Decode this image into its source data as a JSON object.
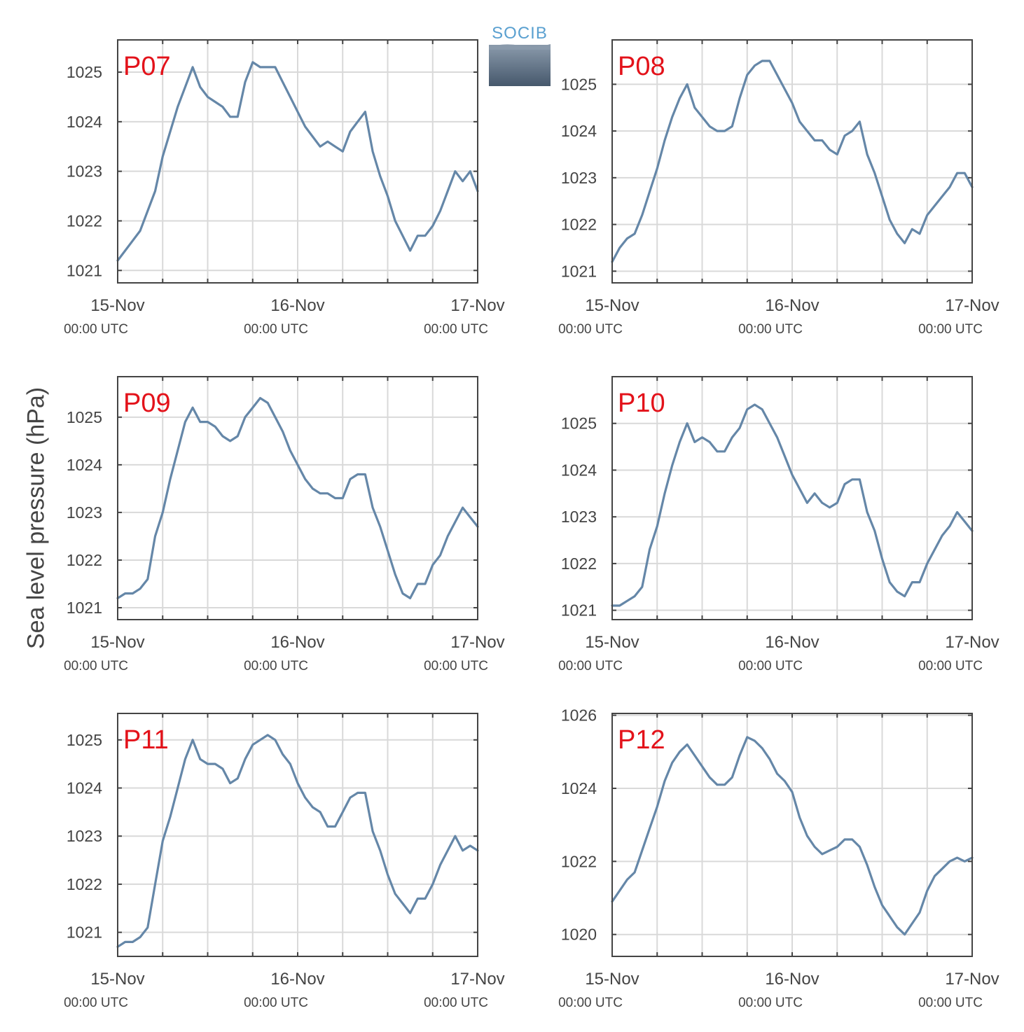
{
  "figure": {
    "ylabel": "Sea level pressure (hPa)",
    "logo_text": "SOCIB"
  },
  "chart_data": [
    {
      "type": "line",
      "panel_label": "P07",
      "x_ticks": [
        {
          "value": 0,
          "date": "15-Nov",
          "time": "00:00 UTC"
        },
        {
          "value": 24,
          "date": "16-Nov",
          "time": "00:00 UTC"
        },
        {
          "value": 48,
          "date": "17-Nov",
          "time": "00:00 UTC"
        }
      ],
      "xlim": [
        0,
        48
      ],
      "ylim": [
        1020.75,
        1025.65
      ],
      "yticks": [
        1021,
        1022,
        1023,
        1024,
        1025
      ],
      "grid": true,
      "x": [
        0,
        1,
        2,
        3,
        4,
        5,
        6,
        7,
        8,
        9,
        10,
        11,
        12,
        13,
        14,
        15,
        16,
        17,
        18,
        19,
        20,
        21,
        22,
        23,
        24,
        25,
        26,
        27,
        28,
        29,
        30,
        31,
        32,
        33,
        34,
        35,
        36,
        37,
        38,
        39,
        40,
        41,
        42,
        43,
        44,
        45,
        46,
        47,
        48
      ],
      "y": [
        1021.2,
        1021.4,
        1021.6,
        1021.8,
        1022.2,
        1022.6,
        1023.3,
        1023.8,
        1024.3,
        1024.7,
        1025.1,
        1024.7,
        1024.5,
        1024.4,
        1024.3,
        1024.1,
        1024.1,
        1024.8,
        1025.2,
        1025.1,
        1025.1,
        1025.1,
        1024.8,
        1024.5,
        1024.2,
        1023.9,
        1023.7,
        1023.5,
        1023.6,
        1023.5,
        1023.4,
        1023.8,
        1024.0,
        1024.2,
        1023.4,
        1022.9,
        1022.5,
        1022.0,
        1021.7,
        1021.4,
        1021.7,
        1021.7,
        1021.9,
        1022.2,
        1022.6,
        1023.0,
        1022.8,
        1023.0,
        1022.6
      ]
    },
    {
      "type": "line",
      "panel_label": "P08",
      "x_ticks": [
        {
          "value": 0,
          "date": "15-Nov",
          "time": "00:00 UTC"
        },
        {
          "value": 24,
          "date": "16-Nov",
          "time": "00:00 UTC"
        },
        {
          "value": 48,
          "date": "17-Nov",
          "time": "00:00 UTC"
        }
      ],
      "xlim": [
        0,
        48
      ],
      "ylim": [
        1020.75,
        1025.95
      ],
      "yticks": [
        1021,
        1022,
        1023,
        1024,
        1025
      ],
      "grid": true,
      "x": [
        0,
        1,
        2,
        3,
        4,
        5,
        6,
        7,
        8,
        9,
        10,
        11,
        12,
        13,
        14,
        15,
        16,
        17,
        18,
        19,
        20,
        21,
        22,
        23,
        24,
        25,
        26,
        27,
        28,
        29,
        30,
        31,
        32,
        33,
        34,
        35,
        36,
        37,
        38,
        39,
        40,
        41,
        42,
        43,
        44,
        45,
        46,
        47,
        48
      ],
      "y": [
        1021.2,
        1021.5,
        1021.7,
        1021.8,
        1022.2,
        1022.7,
        1023.2,
        1023.8,
        1024.3,
        1024.7,
        1025.0,
        1024.5,
        1024.3,
        1024.1,
        1024.0,
        1024.0,
        1024.1,
        1024.7,
        1025.2,
        1025.4,
        1025.5,
        1025.5,
        1025.2,
        1024.9,
        1024.6,
        1024.2,
        1024.0,
        1023.8,
        1023.8,
        1023.6,
        1023.5,
        1023.9,
        1024.0,
        1024.2,
        1023.5,
        1023.1,
        1022.6,
        1022.1,
        1021.8,
        1021.6,
        1021.9,
        1021.8,
        1022.2,
        1022.4,
        1022.6,
        1022.8,
        1023.1,
        1023.1,
        1022.8
      ]
    },
    {
      "type": "line",
      "panel_label": "P09",
      "x_ticks": [
        {
          "value": 0,
          "date": "15-Nov",
          "time": "00:00 UTC"
        },
        {
          "value": 24,
          "date": "16-Nov",
          "time": "00:00 UTC"
        },
        {
          "value": 48,
          "date": "17-Nov",
          "time": "00:00 UTC"
        }
      ],
      "xlim": [
        0,
        48
      ],
      "ylim": [
        1020.75,
        1025.85
      ],
      "yticks": [
        1021,
        1022,
        1023,
        1024,
        1025
      ],
      "grid": true,
      "x": [
        0,
        1,
        2,
        3,
        4,
        5,
        6,
        7,
        8,
        9,
        10,
        11,
        12,
        13,
        14,
        15,
        16,
        17,
        18,
        19,
        20,
        21,
        22,
        23,
        24,
        25,
        26,
        27,
        28,
        29,
        30,
        31,
        32,
        33,
        34,
        35,
        36,
        37,
        38,
        39,
        40,
        41,
        42,
        43,
        44,
        45,
        46,
        47,
        48
      ],
      "y": [
        1021.2,
        1021.3,
        1021.3,
        1021.4,
        1021.6,
        1022.5,
        1023.0,
        1023.7,
        1024.3,
        1024.9,
        1025.2,
        1024.9,
        1024.9,
        1024.8,
        1024.6,
        1024.5,
        1024.6,
        1025.0,
        1025.2,
        1025.4,
        1025.3,
        1025.0,
        1024.7,
        1024.3,
        1024.0,
        1023.7,
        1023.5,
        1023.4,
        1023.4,
        1023.3,
        1023.3,
        1023.7,
        1023.8,
        1023.8,
        1023.1,
        1022.7,
        1022.2,
        1021.7,
        1021.3,
        1021.2,
        1021.5,
        1021.5,
        1021.9,
        1022.1,
        1022.5,
        1022.8,
        1023.1,
        1022.9,
        1022.7
      ]
    },
    {
      "type": "line",
      "panel_label": "P10",
      "x_ticks": [
        {
          "value": 0,
          "date": "15-Nov",
          "time": "00:00 UTC"
        },
        {
          "value": 24,
          "date": "16-Nov",
          "time": "00:00 UTC"
        },
        {
          "value": 48,
          "date": "17-Nov",
          "time": "00:00 UTC"
        }
      ],
      "xlim": [
        0,
        48
      ],
      "ylim": [
        1020.8,
        1026.0
      ],
      "yticks": [
        1021,
        1022,
        1023,
        1024,
        1025
      ],
      "grid": true,
      "x": [
        0,
        1,
        2,
        3,
        4,
        5,
        6,
        7,
        8,
        9,
        10,
        11,
        12,
        13,
        14,
        15,
        16,
        17,
        18,
        19,
        20,
        21,
        22,
        23,
        24,
        25,
        26,
        27,
        28,
        29,
        30,
        31,
        32,
        33,
        34,
        35,
        36,
        37,
        38,
        39,
        40,
        41,
        42,
        43,
        44,
        45,
        46,
        47,
        48
      ],
      "y": [
        1021.1,
        1021.1,
        1021.2,
        1021.3,
        1021.5,
        1022.3,
        1022.8,
        1023.5,
        1024.1,
        1024.6,
        1025.0,
        1024.6,
        1024.7,
        1024.6,
        1024.4,
        1024.4,
        1024.7,
        1024.9,
        1025.3,
        1025.4,
        1025.3,
        1025.0,
        1024.7,
        1024.3,
        1023.9,
        1023.6,
        1023.3,
        1023.5,
        1023.3,
        1023.2,
        1023.3,
        1023.7,
        1023.8,
        1023.8,
        1023.1,
        1022.7,
        1022.1,
        1021.6,
        1021.4,
        1021.3,
        1021.6,
        1021.6,
        1022.0,
        1022.3,
        1022.6,
        1022.8,
        1023.1,
        1022.9,
        1022.7
      ]
    },
    {
      "type": "line",
      "panel_label": "P11",
      "x_ticks": [
        {
          "value": 0,
          "date": "15-Nov",
          "time": "00:00 UTC"
        },
        {
          "value": 24,
          "date": "16-Nov",
          "time": "00:00 UTC"
        },
        {
          "value": 48,
          "date": "17-Nov",
          "time": "00:00 UTC"
        }
      ],
      "xlim": [
        0,
        48
      ],
      "ylim": [
        1020.5,
        1025.55
      ],
      "yticks": [
        1021,
        1022,
        1023,
        1024,
        1025
      ],
      "grid": true,
      "x": [
        0,
        1,
        2,
        3,
        4,
        5,
        6,
        7,
        8,
        9,
        10,
        11,
        12,
        13,
        14,
        15,
        16,
        17,
        18,
        19,
        20,
        21,
        22,
        23,
        24,
        25,
        26,
        27,
        28,
        29,
        30,
        31,
        32,
        33,
        34,
        35,
        36,
        37,
        38,
        39,
        40,
        41,
        42,
        43,
        44,
        45,
        46,
        47,
        48
      ],
      "y": [
        1020.7,
        1020.8,
        1020.8,
        1020.9,
        1021.1,
        1022.0,
        1022.9,
        1023.4,
        1024.0,
        1024.6,
        1025.0,
        1024.6,
        1024.5,
        1024.5,
        1024.4,
        1024.1,
        1024.2,
        1024.6,
        1024.9,
        1025.0,
        1025.1,
        1025.0,
        1024.7,
        1024.5,
        1024.1,
        1023.8,
        1023.6,
        1023.5,
        1023.2,
        1023.2,
        1023.5,
        1023.8,
        1023.9,
        1023.9,
        1023.1,
        1022.7,
        1022.2,
        1021.8,
        1021.6,
        1021.4,
        1021.7,
        1021.7,
        1022.0,
        1022.4,
        1022.7,
        1023.0,
        1022.7,
        1022.8,
        1022.7
      ]
    },
    {
      "type": "line",
      "panel_label": "P12",
      "x_ticks": [
        {
          "value": 0,
          "date": "15-Nov",
          "time": "00:00 UTC"
        },
        {
          "value": 24,
          "date": "16-Nov",
          "time": "00:00 UTC"
        },
        {
          "value": 48,
          "date": "17-Nov",
          "time": "00:00 UTC"
        }
      ],
      "xlim": [
        0,
        48
      ],
      "ylim": [
        1019.4,
        1026.05
      ],
      "yticks": [
        1020,
        1022,
        1024,
        1026
      ],
      "grid": true,
      "x": [
        0,
        1,
        2,
        3,
        4,
        5,
        6,
        7,
        8,
        9,
        10,
        11,
        12,
        13,
        14,
        15,
        16,
        17,
        18,
        19,
        20,
        21,
        22,
        23,
        24,
        25,
        26,
        27,
        28,
        29,
        30,
        31,
        32,
        33,
        34,
        35,
        36,
        37,
        38,
        39,
        40,
        41,
        42,
        43,
        44,
        45,
        46,
        47,
        48
      ],
      "y": [
        1020.9,
        1021.2,
        1021.5,
        1021.7,
        1022.3,
        1022.9,
        1023.5,
        1024.2,
        1024.7,
        1025.0,
        1025.2,
        1024.9,
        1024.6,
        1024.3,
        1024.1,
        1024.1,
        1024.3,
        1024.9,
        1025.4,
        1025.3,
        1025.1,
        1024.8,
        1024.4,
        1024.2,
        1023.9,
        1023.2,
        1022.7,
        1022.4,
        1022.2,
        1022.3,
        1022.4,
        1022.6,
        1022.6,
        1022.4,
        1021.9,
        1021.3,
        1020.8,
        1020.5,
        1020.2,
        1020.0,
        1020.3,
        1020.6,
        1021.2,
        1021.6,
        1021.8,
        1022.0,
        1022.1,
        1022.0,
        1022.1
      ]
    }
  ],
  "colors": {
    "line": "#6587a8",
    "panel_label": "#e3121a",
    "grid": "#d9d9d9",
    "axis": "#444444"
  }
}
